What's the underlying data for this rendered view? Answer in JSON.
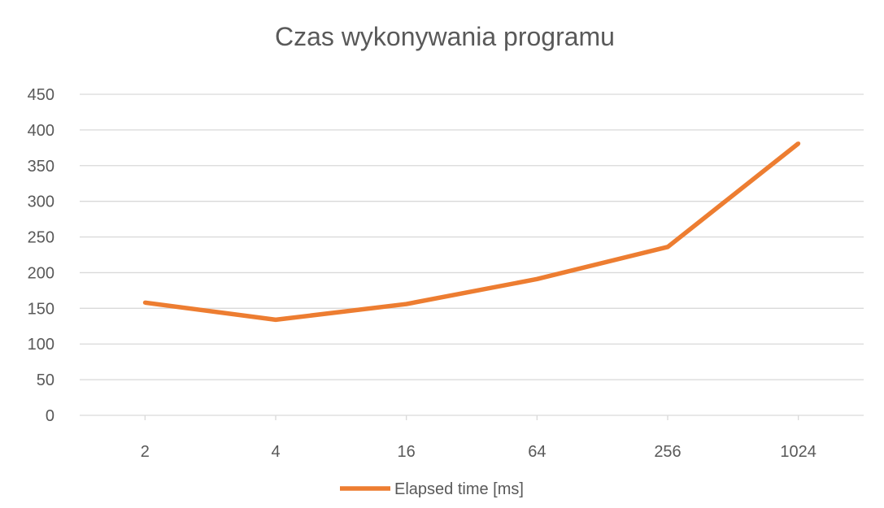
{
  "chart_data": {
    "type": "line",
    "title": "Czas wykonywania programu",
    "xlabel": "",
    "ylabel": "",
    "categories": [
      "2",
      "4",
      "16",
      "64",
      "256",
      "1024"
    ],
    "series": [
      {
        "name": "Elapsed time [ms]",
        "values": [
          158,
          134,
          156,
          191,
          236,
          381
        ],
        "color": "#ed7d31"
      }
    ],
    "ylim": [
      0,
      450
    ],
    "yticks": [
      "0",
      "50",
      "100",
      "150",
      "200",
      "250",
      "300",
      "350",
      "400",
      "450"
    ],
    "grid": true,
    "legend": "bottom"
  }
}
